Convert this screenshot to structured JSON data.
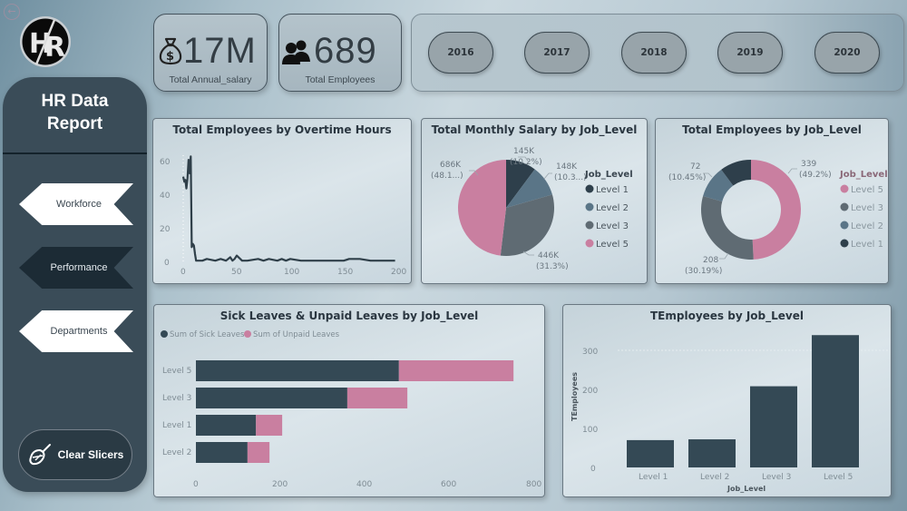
{
  "header": {
    "back_icon": "arrow-left-circle-icon",
    "logo_text": "HR"
  },
  "sidebar": {
    "title_line1": "HR Data",
    "title_line2": "Report",
    "nav": [
      {
        "label": "Workforce",
        "active": false
      },
      {
        "label": "Performance",
        "active": true
      },
      {
        "label": "Departments",
        "active": false
      }
    ],
    "clear_label": "Clear Slicers",
    "clear_icon": "broom-icon"
  },
  "kpis": [
    {
      "value": "17M",
      "label": "Total Annual_salary",
      "icon": "money-bag-icon"
    },
    {
      "value": "689",
      "label": "Total Employees",
      "icon": "people-icon"
    }
  ],
  "years": [
    "2016",
    "2017",
    "2018",
    "2019",
    "2020"
  ],
  "colors": {
    "level1": "#2e3f4b",
    "level2": "#5a7587",
    "level3": "#5f6b73",
    "level5": "#c97fa0",
    "sick": "#344955",
    "unpaid": "#c97fa0",
    "bar": "#344955",
    "sidebar": "#3a4c58"
  },
  "chart_data": [
    {
      "type": "line",
      "title": "Total Employees by Overtime Hours",
      "xlabel": "",
      "ylabel": "",
      "xticks": [
        "0",
        "50",
        "100",
        "150",
        "200"
      ],
      "yticks": [
        "0",
        "20",
        "40",
        "60"
      ],
      "xlim": [
        0,
        200
      ],
      "ylim": [
        0,
        65
      ],
      "x": [
        0,
        1,
        2,
        3,
        4,
        5,
        6,
        7,
        8,
        9,
        10,
        11,
        12,
        13,
        14,
        15,
        18,
        22,
        30,
        35,
        40,
        44,
        46,
        48,
        50,
        55,
        60,
        70,
        75,
        80,
        88,
        92,
        96,
        100,
        110,
        120,
        130,
        140,
        150,
        155,
        165,
        175,
        185,
        198
      ],
      "y": [
        51,
        48,
        49,
        44,
        50,
        61,
        53,
        63,
        9,
        11,
        10,
        5,
        1,
        1,
        1,
        1,
        1,
        2,
        1,
        2,
        1,
        3,
        1,
        2,
        4,
        1,
        1,
        2,
        1,
        2,
        1,
        2,
        1,
        2,
        1,
        1,
        1,
        1,
        1,
        2,
        2,
        1,
        1,
        1
      ]
    },
    {
      "type": "pie",
      "title": "Total Monthly Salary by Job_Level",
      "legend_title": "Job_Level",
      "categories": [
        "Level 1",
        "Level 2",
        "Level 3",
        "Level 5"
      ],
      "values": [
        145000,
        148000,
        446000,
        686000
      ],
      "labels": [
        {
          "value": "145K",
          "pct": "(10.2%)"
        },
        {
          "value": "148K",
          "pct": "(10.3...)"
        },
        {
          "value": "446K",
          "pct": "(31.3%)"
        },
        {
          "value": "686K",
          "pct": "(48.1...)"
        }
      ]
    },
    {
      "type": "pie",
      "subtype": "donut",
      "title": "Total Employees by Job_Level",
      "legend_title": "Job_Level",
      "categories": [
        "Level 5",
        "Level 3",
        "Level 2",
        "Level 1"
      ],
      "values": [
        339,
        208,
        72,
        70
      ],
      "labels": [
        {
          "value": "339",
          "pct": "(49.2%)"
        },
        {
          "value": "208",
          "pct": "(30.19%)"
        },
        {
          "value": "72",
          "pct": "(10.45%)"
        }
      ]
    },
    {
      "type": "bar",
      "orientation": "horizontal",
      "stacked": true,
      "title": "Sick Leaves & Unpaid Leaves by Job_Level",
      "categories": [
        "Level 5",
        "Level 3",
        "Level 1",
        "Level 2"
      ],
      "series": [
        {
          "name": "Sum of Sick Leaves",
          "values": [
            480,
            358,
            142,
            122
          ]
        },
        {
          "name": "Sum of Unpaid Leaves",
          "values": [
            271,
            142,
            62,
            52
          ]
        }
      ],
      "xticks": [
        "0",
        "200",
        "400",
        "600",
        "800"
      ],
      "xlim": [
        0,
        800
      ],
      "legend_position": "top-left"
    },
    {
      "type": "bar",
      "title": "TEmployees by Job_Level",
      "categories": [
        "Level 1",
        "Level 2",
        "Level 3",
        "Level 5"
      ],
      "values": [
        70,
        72,
        208,
        339
      ],
      "xlabel": "Job_Level",
      "ylabel": "TEmployees",
      "yticks": [
        "0",
        "100",
        "200",
        "300"
      ],
      "ylim": [
        0,
        340
      ],
      "grid": true
    }
  ]
}
